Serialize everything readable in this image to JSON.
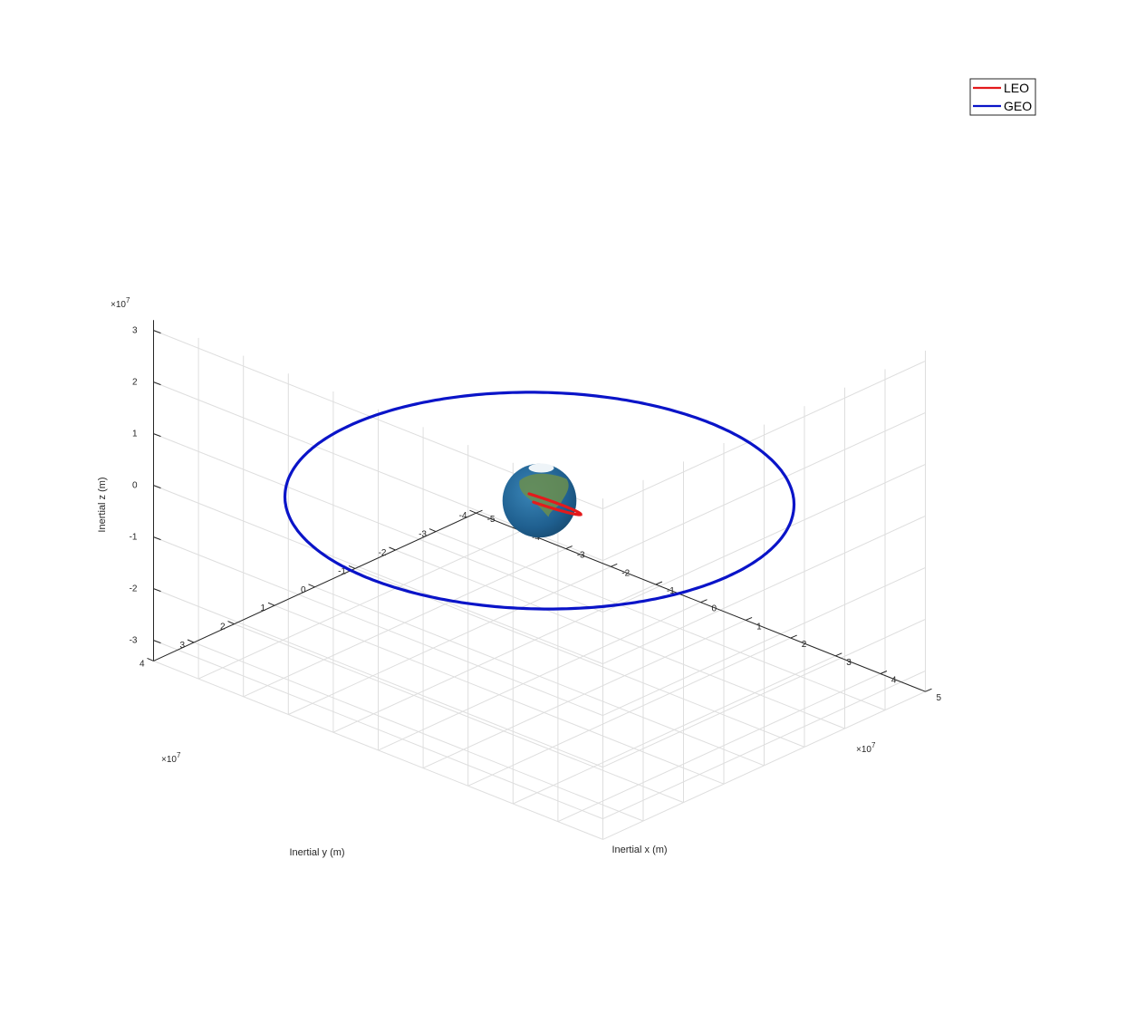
{
  "chart_data": {
    "type": "line3d",
    "xlabel": "Inertial x (m)",
    "ylabel": "Inertial y (m)",
    "zlabel": "Inertial z (m)",
    "x_exponent": "×10^7",
    "y_exponent": "×10^7",
    "z_exponent": "×10^7",
    "xlim": [
      -5,
      5
    ],
    "ylim": [
      -4,
      4
    ],
    "zlim": [
      -3.4,
      3.2
    ],
    "xticks": [
      -5,
      -4,
      -3,
      -2,
      -1,
      0,
      1,
      2,
      3,
      4,
      5
    ],
    "yticks": [
      -4,
      -3,
      -2,
      -1,
      0,
      1,
      2,
      3,
      4
    ],
    "zticks": [
      -3,
      -2,
      -1,
      0,
      1,
      2,
      3
    ],
    "grid": true,
    "legend_position": "top-right",
    "series": [
      {
        "name": "LEO",
        "color": "#e31a1c",
        "orbit_radius": 0.72,
        "inclination_deg": 28
      },
      {
        "name": "GEO",
        "color": "#0a14c8",
        "orbit_radius": 4.2164,
        "inclination_deg": 0
      }
    ],
    "central_body": {
      "name": "earth-globe",
      "radius": 0.6371,
      "ocean_color": "#1f5f8f",
      "land_color": "#6b8e4e"
    }
  }
}
